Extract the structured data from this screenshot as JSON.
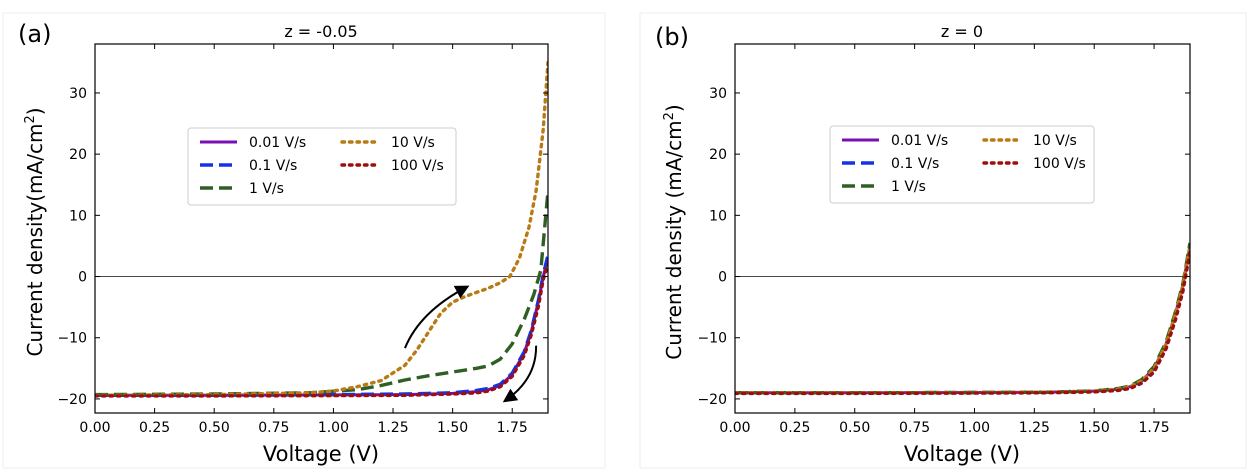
{
  "figure": {
    "colors": {
      "s001": "#7a0fb3",
      "s01": "#1533e6",
      "s1": "#2f5f23",
      "s10": "#b97a16",
      "s100": "#a00d0d",
      "zero_line": "#4a4a4a",
      "arrow": "#000000"
    }
  },
  "chart_data": [
    {
      "type": "line",
      "panel_label": "(a)",
      "title": "z = -0.05",
      "xlabel": "Voltage (V)",
      "ylabel_main": "Current density(mA/cm",
      "ylabel_sup": "2",
      "ylabel_close": ")",
      "xlim": [
        0,
        1.9
      ],
      "ylim": [
        -22.3,
        38
      ],
      "xticks": [
        0,
        0.25,
        0.5,
        0.75,
        1.0,
        1.25,
        1.5,
        1.75
      ],
      "xtick_labels": [
        "0.00",
        "0.25",
        "0.50",
        "0.75",
        "1.00",
        "1.25",
        "1.50",
        "1.75"
      ],
      "yticks": [
        -20,
        -10,
        0,
        10,
        20,
        30
      ],
      "ytick_labels": [
        "−20",
        "−10",
        "0",
        "10",
        "20",
        "30"
      ],
      "hline_y": 0,
      "legend": {
        "ncol": 2,
        "position": "upper-center"
      },
      "arrows": [
        {
          "from": [
            1.3,
            -11.7
          ],
          "to": [
            1.56,
            -1.7
          ],
          "bend": "up"
        },
        {
          "from": [
            1.85,
            -11.3
          ],
          "to": [
            1.72,
            -20.3
          ],
          "bend": "down"
        }
      ],
      "series": [
        {
          "name": "0.01 V/s",
          "color_key": "s001",
          "dash": "solid",
          "x": [
            0,
            0.5,
            1.0,
            1.3,
            1.5,
            1.6,
            1.65,
            1.7,
            1.75,
            1.8,
            1.83,
            1.86,
            1.88,
            1.9
          ],
          "y": [
            -19.4,
            -19.4,
            -19.35,
            -19.3,
            -19.1,
            -18.8,
            -18.5,
            -17.8,
            -16.0,
            -12.5,
            -9.0,
            -4.0,
            0.0,
            3.0
          ]
        },
        {
          "name": "0.1 V/s",
          "color_key": "s01",
          "dash": "dash",
          "x": [
            0,
            0.5,
            1.0,
            1.3,
            1.5,
            1.6,
            1.65,
            1.7,
            1.75,
            1.8,
            1.83,
            1.86,
            1.88,
            1.9
          ],
          "y": [
            -19.4,
            -19.4,
            -19.3,
            -19.2,
            -19.0,
            -18.6,
            -18.3,
            -17.6,
            -15.8,
            -12.3,
            -8.8,
            -3.8,
            0.3,
            3.5
          ]
        },
        {
          "name": "1 V/s",
          "color_key": "s1",
          "dash": "dash",
          "x": [
            0,
            0.5,
            0.9,
            1.1,
            1.2,
            1.3,
            1.4,
            1.5,
            1.6,
            1.65,
            1.7,
            1.75,
            1.8,
            1.84,
            1.87,
            1.9
          ],
          "y": [
            -19.3,
            -19.2,
            -19.0,
            -18.5,
            -17.8,
            -16.9,
            -16.2,
            -15.6,
            -15.0,
            -14.6,
            -13.5,
            -11.0,
            -7.0,
            -3.0,
            1.0,
            14.0
          ]
        },
        {
          "name": "10 V/s",
          "color_key": "s10",
          "dash": "dot",
          "x": [
            0,
            0.5,
            0.9,
            1.0,
            1.1,
            1.2,
            1.3,
            1.35,
            1.4,
            1.45,
            1.5,
            1.55,
            1.6,
            1.65,
            1.7,
            1.74,
            1.78,
            1.82,
            1.85,
            1.88,
            1.9
          ],
          "y": [
            -19.4,
            -19.3,
            -19.0,
            -18.7,
            -18.0,
            -17.0,
            -14.5,
            -12.0,
            -9.0,
            -6.0,
            -4.2,
            -3.3,
            -2.6,
            -1.9,
            -1.0,
            0.0,
            3.0,
            8.0,
            14.0,
            24.0,
            35.0
          ]
        },
        {
          "name": "100 V/s",
          "color_key": "s100",
          "dash": "dot",
          "x": [
            0,
            0.5,
            1.0,
            1.3,
            1.5,
            1.6,
            1.65,
            1.7,
            1.75,
            1.8,
            1.83,
            1.86,
            1.88,
            1.9
          ],
          "y": [
            -19.5,
            -19.5,
            -19.45,
            -19.4,
            -19.2,
            -19.0,
            -18.7,
            -18.0,
            -16.3,
            -12.9,
            -9.5,
            -4.8,
            -0.5,
            2.0
          ]
        }
      ]
    },
    {
      "type": "line",
      "panel_label": "(b)",
      "title": "z = 0",
      "xlabel": "Voltage (V)",
      "ylabel_main": "Current density (mA/cm",
      "ylabel_sup": "2",
      "ylabel_close": ")",
      "xlim": [
        0,
        1.9
      ],
      "ylim": [
        -22.3,
        38
      ],
      "xticks": [
        0,
        0.25,
        0.5,
        0.75,
        1.0,
        1.25,
        1.5,
        1.75
      ],
      "xtick_labels": [
        "0.00",
        "0.25",
        "0.50",
        "0.75",
        "1.00",
        "1.25",
        "1.50",
        "1.75"
      ],
      "yticks": [
        -20,
        -10,
        0,
        10,
        20,
        30
      ],
      "ytick_labels": [
        "−20",
        "−10",
        "0",
        "10",
        "20",
        "30"
      ],
      "hline_y": 0,
      "legend": {
        "ncol": 2,
        "position": "upper-center"
      },
      "arrows": [],
      "series": [
        {
          "name": "0.01 V/s",
          "color_key": "s001",
          "dash": "solid",
          "x": [
            0,
            0.5,
            1.0,
            1.3,
            1.5,
            1.6,
            1.65,
            1.7,
            1.75,
            1.8,
            1.84,
            1.87,
            1.9
          ],
          "y": [
            -19.0,
            -19.0,
            -18.95,
            -18.9,
            -18.7,
            -18.4,
            -18.0,
            -17.0,
            -15.0,
            -11.0,
            -6.0,
            -1.5,
            5.0
          ]
        },
        {
          "name": "0.1 V/s",
          "color_key": "s01",
          "dash": "dash",
          "x": [
            0,
            0.5,
            1.0,
            1.3,
            1.5,
            1.6,
            1.65,
            1.7,
            1.75,
            1.8,
            1.84,
            1.87,
            1.9
          ],
          "y": [
            -19.0,
            -19.0,
            -18.95,
            -18.9,
            -18.7,
            -18.4,
            -18.0,
            -17.0,
            -15.0,
            -11.0,
            -6.0,
            -1.5,
            5.0
          ]
        },
        {
          "name": "1 V/s",
          "color_key": "s1",
          "dash": "dash",
          "x": [
            0,
            0.5,
            1.0,
            1.3,
            1.5,
            1.6,
            1.65,
            1.7,
            1.75,
            1.8,
            1.84,
            1.87,
            1.9
          ],
          "y": [
            -19.0,
            -19.0,
            -18.95,
            -18.9,
            -18.7,
            -18.3,
            -17.9,
            -16.8,
            -14.7,
            -10.7,
            -5.7,
            -1.2,
            5.5
          ]
        },
        {
          "name": "10 V/s",
          "color_key": "s10",
          "dash": "dot",
          "x": [
            0,
            0.5,
            1.0,
            1.3,
            1.5,
            1.6,
            1.65,
            1.7,
            1.75,
            1.8,
            1.84,
            1.87,
            1.9
          ],
          "y": [
            -19.0,
            -19.0,
            -18.95,
            -18.9,
            -18.7,
            -18.4,
            -18.0,
            -17.0,
            -15.0,
            -11.0,
            -6.0,
            -1.5,
            5.0
          ]
        },
        {
          "name": "100 V/s",
          "color_key": "s100",
          "dash": "dot",
          "x": [
            0,
            0.5,
            1.0,
            1.3,
            1.5,
            1.6,
            1.65,
            1.7,
            1.75,
            1.8,
            1.84,
            1.87,
            1.9
          ],
          "y": [
            -19.1,
            -19.1,
            -19.05,
            -19.0,
            -18.85,
            -18.6,
            -18.3,
            -17.4,
            -15.6,
            -11.8,
            -7.0,
            -2.5,
            4.0
          ]
        }
      ]
    }
  ]
}
